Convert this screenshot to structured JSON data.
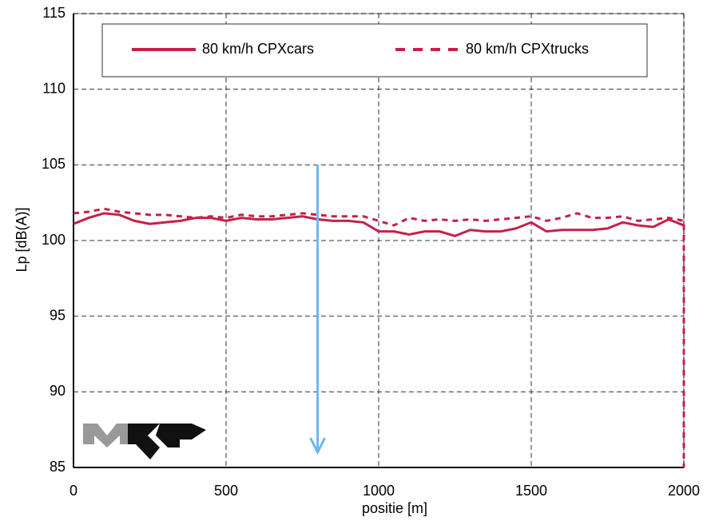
{
  "chart_data": {
    "type": "line",
    "xlabel": "positie [m]",
    "ylabel": "Lp [dB(A)]",
    "xlim": [
      0,
      2000
    ],
    "xticks": [
      0,
      500,
      1000,
      1500,
      2000
    ],
    "ylim": [
      85,
      115
    ],
    "yticks": [
      85,
      90,
      95,
      100,
      105,
      110,
      115
    ],
    "grid": true,
    "legend": "top",
    "series": [
      {
        "name": "80 km/h CPXcars",
        "color": "#c4214a",
        "style": "solid",
        "x": [
          0,
          50,
          100,
          150,
          200,
          250,
          300,
          350,
          400,
          450,
          500,
          550,
          600,
          650,
          700,
          750,
          800,
          850,
          900,
          950,
          1000,
          1050,
          1100,
          1150,
          1200,
          1250,
          1300,
          1350,
          1400,
          1450,
          1500,
          1550,
          1600,
          1650,
          1700,
          1750,
          1800,
          1850,
          1900,
          1950,
          2000
        ],
        "values": [
          101.1,
          101.5,
          101.8,
          101.7,
          101.3,
          101.1,
          101.2,
          101.3,
          101.5,
          101.5,
          101.3,
          101.5,
          101.4,
          101.4,
          101.5,
          101.6,
          101.4,
          101.3,
          101.3,
          101.2,
          100.6,
          100.6,
          100.4,
          100.6,
          100.6,
          100.3,
          100.7,
          100.6,
          100.6,
          100.8,
          101.2,
          100.6,
          100.7,
          100.7,
          100.7,
          100.8,
          101.2,
          101.0,
          100.9,
          101.4,
          101.0
        ]
      },
      {
        "name": "80 km/h CPXtrucks",
        "color": "#c4214a",
        "style": "dashed",
        "x": [
          0,
          50,
          100,
          150,
          200,
          250,
          300,
          350,
          400,
          450,
          500,
          550,
          600,
          650,
          700,
          750,
          800,
          850,
          900,
          950,
          1000,
          1050,
          1100,
          1150,
          1200,
          1250,
          1300,
          1350,
          1400,
          1450,
          1500,
          1550,
          1600,
          1650,
          1700,
          1750,
          1800,
          1850,
          1900,
          1950,
          2000,
          2000
        ],
        "values": [
          101.8,
          101.9,
          102.1,
          101.9,
          101.8,
          101.7,
          101.7,
          101.6,
          101.5,
          101.6,
          101.5,
          101.7,
          101.6,
          101.6,
          101.7,
          101.8,
          101.7,
          101.6,
          101.6,
          101.6,
          101.3,
          101.0,
          101.5,
          101.3,
          101.4,
          101.3,
          101.4,
          101.3,
          101.4,
          101.5,
          101.6,
          101.3,
          101.5,
          101.8,
          101.5,
          101.5,
          101.6,
          101.3,
          101.4,
          101.5,
          101.3,
          85
        ]
      }
    ],
    "arrow": {
      "x": 800,
      "y_start": 105,
      "y_end": 86,
      "color": "#6cb8ec"
    }
  }
}
